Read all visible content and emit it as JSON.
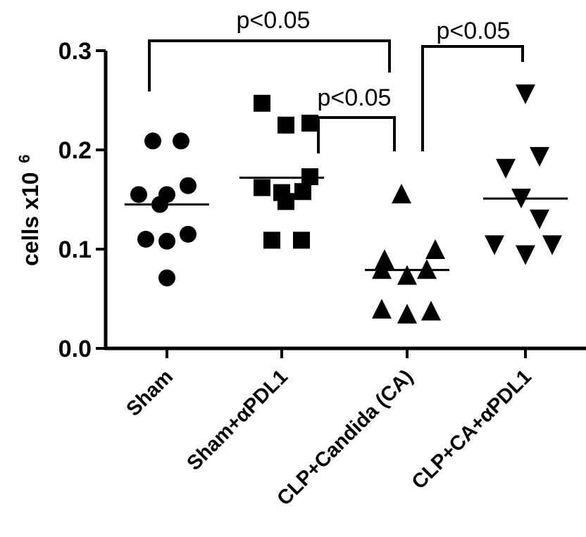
{
  "chart_data": {
    "type": "scatter",
    "ylabel_main": "cells x10",
    "ylabel_exp": "6",
    "ylim": [
      0,
      0.3
    ],
    "yticks": [
      "0.0",
      "0.1",
      "0.2",
      "0.3"
    ],
    "grid": false,
    "categories": [
      "Sham",
      "Sham+αPDL1",
      "CLP+Candida (CA)",
      "CLP+CA+αPDL1"
    ],
    "groups": [
      {
        "category": "Sham",
        "marker": "circle",
        "mean": 0.145,
        "values": [
          0.209,
          0.209,
          0.155,
          0.145,
          0.155,
          0.164,
          0.11,
          0.108,
          0.115,
          0.071
        ]
      },
      {
        "category": "Sham+αPDL1",
        "marker": "square",
        "mean": 0.172,
        "values": [
          0.247,
          0.225,
          0.227,
          0.162,
          0.157,
          0.148,
          0.158,
          0.173,
          0.109,
          0.109
        ]
      },
      {
        "category": "CLP+Candida (CA)",
        "marker": "triangle-up",
        "mean": 0.079,
        "values": [
          0.156,
          0.09,
          0.08,
          0.074,
          0.08,
          0.1,
          0.04,
          0.035,
          0.038
        ]
      },
      {
        "category": "CLP+CA+αPDL1",
        "marker": "triangle-down",
        "mean": 0.151,
        "values": [
          0.256,
          0.181,
          0.193,
          0.151,
          0.13,
          0.104,
          0.094,
          0.104
        ]
      }
    ],
    "annotations": [
      {
        "from": 0,
        "to": 2,
        "text": "p<0.05",
        "level": "top"
      },
      {
        "from": 1,
        "to": 2,
        "text": "p<0.05",
        "level": "middle"
      },
      {
        "from": 2,
        "to": 3,
        "text": "p<0.05",
        "level": "top"
      }
    ]
  }
}
